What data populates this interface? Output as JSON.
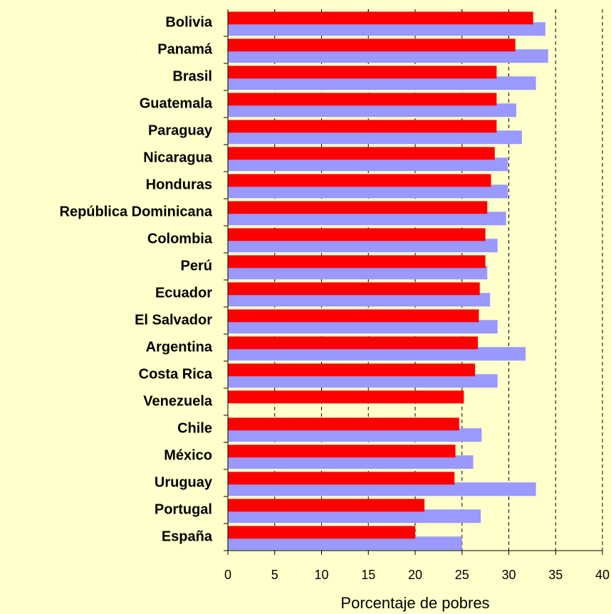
{
  "chart_data": {
    "type": "bar",
    "orientation": "horizontal",
    "x_label": "Porcentaje de pobres",
    "categories": [
      "Bolivia",
      "Panamá",
      "Brasil",
      "Guatemala",
      "Paraguay",
      "Nicaragua",
      "Honduras",
      "República Dominicana",
      "Colombia",
      "Perú",
      "Ecuador",
      "El Salvador",
      "Argentina",
      "Costa Rica",
      "Venezuela",
      "Chile",
      "México",
      "Uruguay",
      "Portugal",
      "España"
    ],
    "series": [
      {
        "color": "#9999ff",
        "values": [
          33.9,
          34.2,
          32.9,
          30.8,
          31.4,
          29.9,
          29.9,
          29.7,
          28.8,
          27.7,
          28.0,
          28.8,
          31.8,
          28.8,
          null,
          27.1,
          26.2,
          32.9,
          27.0,
          25.0
        ]
      },
      {
        "color": "#ff0000",
        "values": [
          32.6,
          30.7,
          28.7,
          28.7,
          28.7,
          28.5,
          28.1,
          27.7,
          27.5,
          27.5,
          26.9,
          26.8,
          26.7,
          26.4,
          25.2,
          24.7,
          24.3,
          24.2,
          21.0,
          20.0
        ]
      }
    ],
    "xlim": [
      0,
      40
    ],
    "xticks": [
      0,
      5,
      10,
      15,
      20,
      25,
      30,
      35,
      40
    ],
    "grid": true
  }
}
